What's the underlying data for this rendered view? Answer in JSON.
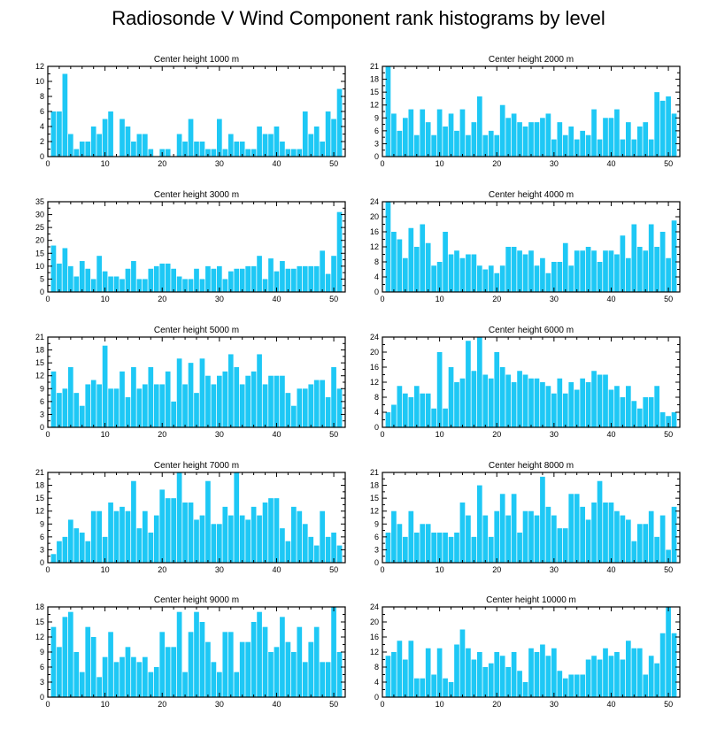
{
  "title": "Radiosonde V Wind Component rank histograms by level",
  "colors": {
    "bar": "#1ec8f5",
    "axis": "#000000",
    "background": "#ffffff"
  },
  "chart_data": [
    {
      "type": "bar",
      "title": "Center height 1000 m",
      "x": [
        0,
        1,
        2,
        3,
        4,
        5,
        6,
        7,
        8,
        9,
        10,
        11,
        12,
        13,
        14,
        15,
        16,
        17,
        18,
        19,
        20,
        21,
        22,
        23,
        24,
        25,
        26,
        27,
        28,
        29,
        30,
        31,
        32,
        33,
        34,
        35,
        36,
        37,
        38,
        39,
        40,
        41,
        42,
        43,
        44,
        45,
        46,
        47,
        48,
        49,
        50,
        51
      ],
      "values": [
        0,
        6,
        6,
        11,
        3,
        1,
        2,
        2,
        4,
        3,
        5,
        6,
        0,
        5,
        4,
        2,
        3,
        3,
        1,
        0,
        1,
        1,
        0,
        3,
        2,
        5,
        2,
        2,
        1,
        1,
        5,
        1,
        3,
        2,
        2,
        1,
        1,
        4,
        3,
        3,
        4,
        2,
        1,
        1,
        1,
        6,
        3,
        4,
        2,
        6,
        5,
        9
      ],
      "xlim": [
        0,
        52
      ],
      "ylim": [
        0,
        12
      ],
      "xticks": [
        0,
        10,
        20,
        30,
        40,
        50
      ],
      "yticks": [
        0,
        2,
        4,
        6,
        8,
        10,
        12
      ]
    },
    {
      "type": "bar",
      "title": "Center height 2000 m",
      "x": [
        0,
        1,
        2,
        3,
        4,
        5,
        6,
        7,
        8,
        9,
        10,
        11,
        12,
        13,
        14,
        15,
        16,
        17,
        18,
        19,
        20,
        21,
        22,
        23,
        24,
        25,
        26,
        27,
        28,
        29,
        30,
        31,
        32,
        33,
        34,
        35,
        36,
        37,
        38,
        39,
        40,
        41,
        42,
        43,
        44,
        45,
        46,
        47,
        48,
        49,
        50,
        51
      ],
      "values": [
        0,
        21,
        10,
        6,
        9,
        11,
        5,
        11,
        8,
        5,
        11,
        7,
        10,
        6,
        11,
        5,
        8,
        14,
        5,
        6,
        5,
        12,
        9,
        10,
        8,
        7,
        8,
        8,
        9,
        10,
        4,
        8,
        5,
        7,
        4,
        6,
        5,
        11,
        4,
        9,
        9,
        11,
        4,
        8,
        4,
        7,
        8,
        4,
        15,
        13,
        14,
        10
      ],
      "xlim": [
        0,
        52
      ],
      "ylim": [
        0,
        21
      ],
      "xticks": [
        0,
        10,
        20,
        30,
        40,
        50
      ],
      "yticks": [
        0,
        3,
        6,
        9,
        12,
        15,
        18,
        21
      ]
    },
    {
      "type": "bar",
      "title": "Center height 3000 m",
      "x": [
        0,
        1,
        2,
        3,
        4,
        5,
        6,
        7,
        8,
        9,
        10,
        11,
        12,
        13,
        14,
        15,
        16,
        17,
        18,
        19,
        20,
        21,
        22,
        23,
        24,
        25,
        26,
        27,
        28,
        29,
        30,
        31,
        32,
        33,
        34,
        35,
        36,
        37,
        38,
        39,
        40,
        41,
        42,
        43,
        44,
        45,
        46,
        47,
        48,
        49,
        50,
        51
      ],
      "values": [
        0,
        18,
        11,
        17,
        10,
        6,
        12,
        9,
        5,
        14,
        8,
        6,
        6,
        5,
        9,
        12,
        5,
        5,
        9,
        10,
        11,
        11,
        9,
        6,
        5,
        5,
        9,
        5,
        10,
        9,
        10,
        5,
        8,
        9,
        9,
        10,
        10,
        14,
        5,
        13,
        8,
        12,
        9,
        9,
        10,
        10,
        10,
        10,
        16,
        7,
        14,
        31
      ],
      "xlim": [
        0,
        52
      ],
      "ylim": [
        0,
        35
      ],
      "xticks": [
        0,
        10,
        20,
        30,
        40,
        50
      ],
      "yticks": [
        0,
        5,
        10,
        15,
        20,
        25,
        30,
        35
      ]
    },
    {
      "type": "bar",
      "title": "Center height 4000 m",
      "x": [
        0,
        1,
        2,
        3,
        4,
        5,
        6,
        7,
        8,
        9,
        10,
        11,
        12,
        13,
        14,
        15,
        16,
        17,
        18,
        19,
        20,
        21,
        22,
        23,
        24,
        25,
        26,
        27,
        28,
        29,
        30,
        31,
        32,
        33,
        34,
        35,
        36,
        37,
        38,
        39,
        40,
        41,
        42,
        43,
        44,
        45,
        46,
        47,
        48,
        49,
        50,
        51
      ],
      "values": [
        0,
        24,
        16,
        14,
        9,
        17,
        12,
        18,
        13,
        7,
        8,
        16,
        10,
        11,
        9,
        10,
        10,
        7,
        6,
        7,
        5,
        7,
        12,
        12,
        11,
        10,
        11,
        7,
        9,
        5,
        8,
        8,
        13,
        7,
        11,
        11,
        12,
        11,
        8,
        11,
        11,
        10,
        15,
        9,
        18,
        12,
        11,
        18,
        12,
        16,
        9,
        19
      ],
      "xlim": [
        0,
        52
      ],
      "ylim": [
        0,
        24
      ],
      "xticks": [
        0,
        10,
        20,
        30,
        40,
        50
      ],
      "yticks": [
        0,
        4,
        8,
        12,
        16,
        20,
        24
      ]
    },
    {
      "type": "bar",
      "title": "Center height 5000 m",
      "x": [
        0,
        1,
        2,
        3,
        4,
        5,
        6,
        7,
        8,
        9,
        10,
        11,
        12,
        13,
        14,
        15,
        16,
        17,
        18,
        19,
        20,
        21,
        22,
        23,
        24,
        25,
        26,
        27,
        28,
        29,
        30,
        31,
        32,
        33,
        34,
        35,
        36,
        37,
        38,
        39,
        40,
        41,
        42,
        43,
        44,
        45,
        46,
        47,
        48,
        49,
        50,
        51
      ],
      "values": [
        0,
        13,
        8,
        9,
        14,
        8,
        5,
        10,
        11,
        10,
        19,
        9,
        9,
        13,
        7,
        14,
        9,
        10,
        14,
        10,
        10,
        13,
        6,
        16,
        10,
        15,
        8,
        16,
        12,
        10,
        12,
        13,
        17,
        14,
        10,
        12,
        13,
        17,
        10,
        12,
        12,
        12,
        8,
        5,
        9,
        9,
        10,
        11,
        11,
        7,
        14,
        9
      ],
      "xlim": [
        0,
        52
      ],
      "ylim": [
        0,
        21
      ],
      "xticks": [
        0,
        10,
        20,
        30,
        40,
        50
      ],
      "yticks": [
        0,
        3,
        6,
        9,
        12,
        15,
        18,
        21
      ]
    },
    {
      "type": "bar",
      "title": "Center height 6000 m",
      "x": [
        0,
        1,
        2,
        3,
        4,
        5,
        6,
        7,
        8,
        9,
        10,
        11,
        12,
        13,
        14,
        15,
        16,
        17,
        18,
        19,
        20,
        21,
        22,
        23,
        24,
        25,
        26,
        27,
        28,
        29,
        30,
        31,
        32,
        33,
        34,
        35,
        36,
        37,
        38,
        39,
        40,
        41,
        42,
        43,
        44,
        45,
        46,
        47,
        48,
        49,
        50,
        51
      ],
      "values": [
        0,
        4,
        6,
        11,
        9,
        8,
        11,
        9,
        9,
        5,
        20,
        5,
        16,
        12,
        13,
        23,
        15,
        24,
        14,
        13,
        20,
        16,
        14,
        12,
        15,
        14,
        13,
        13,
        12,
        11,
        9,
        13,
        9,
        12,
        10,
        13,
        12,
        15,
        14,
        14,
        10,
        11,
        8,
        11,
        7,
        5,
        8,
        8,
        11,
        4,
        3,
        4
      ],
      "xlim": [
        0,
        52
      ],
      "ylim": [
        0,
        24
      ],
      "xticks": [
        0,
        10,
        20,
        30,
        40,
        50
      ],
      "yticks": [
        0,
        4,
        8,
        12,
        16,
        20,
        24
      ]
    },
    {
      "type": "bar",
      "title": "Center height 7000 m",
      "x": [
        0,
        1,
        2,
        3,
        4,
        5,
        6,
        7,
        8,
        9,
        10,
        11,
        12,
        13,
        14,
        15,
        16,
        17,
        18,
        19,
        20,
        21,
        22,
        23,
        24,
        25,
        26,
        27,
        28,
        29,
        30,
        31,
        32,
        33,
        34,
        35,
        36,
        37,
        38,
        39,
        40,
        41,
        42,
        43,
        44,
        45,
        46,
        47,
        48,
        49,
        50,
        51
      ],
      "values": [
        0,
        2,
        5,
        6,
        10,
        8,
        7,
        5,
        12,
        12,
        6,
        14,
        12,
        13,
        12,
        19,
        8,
        12,
        7,
        11,
        17,
        15,
        15,
        21,
        14,
        14,
        10,
        11,
        19,
        9,
        9,
        13,
        11,
        21,
        11,
        10,
        13,
        11,
        14,
        15,
        15,
        8,
        5,
        13,
        12,
        9,
        6,
        4,
        12,
        6,
        7,
        4
      ],
      "xlim": [
        0,
        52
      ],
      "ylim": [
        0,
        21
      ],
      "xticks": [
        0,
        10,
        20,
        30,
        40,
        50
      ],
      "yticks": [
        0,
        3,
        6,
        9,
        12,
        15,
        18,
        21
      ]
    },
    {
      "type": "bar",
      "title": "Center height 8000 m",
      "x": [
        0,
        1,
        2,
        3,
        4,
        5,
        6,
        7,
        8,
        9,
        10,
        11,
        12,
        13,
        14,
        15,
        16,
        17,
        18,
        19,
        20,
        21,
        22,
        23,
        24,
        25,
        26,
        27,
        28,
        29,
        30,
        31,
        32,
        33,
        34,
        35,
        36,
        37,
        38,
        39,
        40,
        41,
        42,
        43,
        44,
        45,
        46,
        47,
        48,
        49,
        50,
        51
      ],
      "values": [
        0,
        7,
        12,
        9,
        6,
        12,
        7,
        9,
        9,
        7,
        7,
        7,
        6,
        7,
        14,
        11,
        6,
        18,
        11,
        6,
        12,
        16,
        11,
        16,
        7,
        12,
        12,
        11,
        20,
        13,
        11,
        8,
        8,
        16,
        16,
        13,
        10,
        14,
        19,
        14,
        14,
        12,
        11,
        10,
        5,
        9,
        9,
        12,
        6,
        11,
        3,
        13
      ],
      "xlim": [
        0,
        52
      ],
      "ylim": [
        0,
        21
      ],
      "xticks": [
        0,
        10,
        20,
        30,
        40,
        50
      ],
      "yticks": [
        0,
        3,
        6,
        9,
        12,
        15,
        18,
        21
      ]
    },
    {
      "type": "bar",
      "title": "Center height 9000 m",
      "x": [
        0,
        1,
        2,
        3,
        4,
        5,
        6,
        7,
        8,
        9,
        10,
        11,
        12,
        13,
        14,
        15,
        16,
        17,
        18,
        19,
        20,
        21,
        22,
        23,
        24,
        25,
        26,
        27,
        28,
        29,
        30,
        31,
        32,
        33,
        34,
        35,
        36,
        37,
        38,
        39,
        40,
        41,
        42,
        43,
        44,
        45,
        46,
        47,
        48,
        49,
        50,
        51
      ],
      "values": [
        0,
        14,
        10,
        16,
        17,
        9,
        5,
        14,
        12,
        4,
        8,
        13,
        7,
        8,
        10,
        8,
        7,
        8,
        5,
        6,
        13,
        10,
        10,
        17,
        5,
        13,
        17,
        15,
        11,
        7,
        5,
        13,
        13,
        5,
        11,
        11,
        15,
        17,
        14,
        9,
        10,
        16,
        11,
        9,
        14,
        7,
        11,
        14,
        7,
        7,
        18,
        9
      ],
      "xlim": [
        0,
        52
      ],
      "ylim": [
        0,
        18
      ],
      "xticks": [
        0,
        10,
        20,
        30,
        40,
        50
      ],
      "yticks": [
        0,
        3,
        6,
        9,
        12,
        15,
        18
      ]
    },
    {
      "type": "bar",
      "title": "Center height 10000 m",
      "x": [
        0,
        1,
        2,
        3,
        4,
        5,
        6,
        7,
        8,
        9,
        10,
        11,
        12,
        13,
        14,
        15,
        16,
        17,
        18,
        19,
        20,
        21,
        22,
        23,
        24,
        25,
        26,
        27,
        28,
        29,
        30,
        31,
        32,
        33,
        34,
        35,
        36,
        37,
        38,
        39,
        40,
        41,
        42,
        43,
        44,
        45,
        46,
        47,
        48,
        49,
        50,
        51
      ],
      "values": [
        0,
        11,
        12,
        15,
        10,
        15,
        5,
        5,
        13,
        6,
        13,
        5,
        4,
        14,
        18,
        13,
        10,
        12,
        8,
        9,
        12,
        11,
        8,
        12,
        7,
        4,
        13,
        12,
        14,
        11,
        13,
        7,
        5,
        6,
        6,
        6,
        10,
        11,
        10,
        13,
        11,
        12,
        10,
        15,
        13,
        13,
        6,
        11,
        9,
        17,
        24,
        17
      ],
      "xlim": [
        0,
        52
      ],
      "ylim": [
        0,
        24
      ],
      "xticks": [
        0,
        10,
        20,
        30,
        40,
        50
      ],
      "yticks": [
        0,
        4,
        8,
        12,
        16,
        20,
        24
      ]
    }
  ]
}
